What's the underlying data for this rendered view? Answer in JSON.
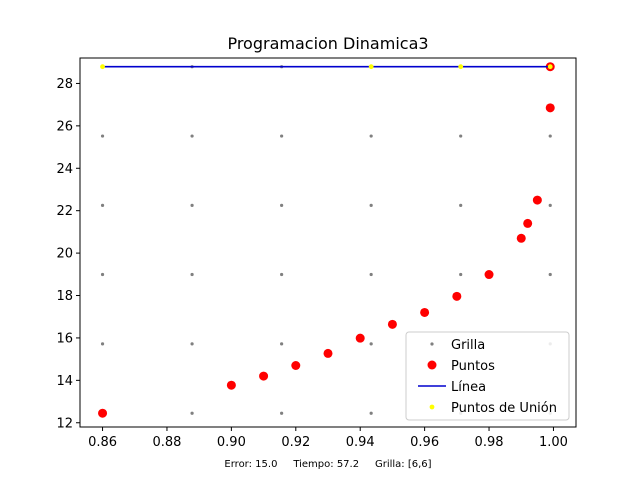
{
  "chart_data": {
    "type": "scatter",
    "title": "Programacion Dinamica3",
    "xlabel": "",
    "ylabel": "",
    "xlim": [
      0.853,
      1.007
    ],
    "ylim": [
      11.8,
      29.2
    ],
    "x_ticks": [
      0.86,
      0.88,
      0.9,
      0.92,
      0.94,
      0.96,
      0.98,
      1.0
    ],
    "x_tick_labels": [
      "0.86",
      "0.88",
      "0.90",
      "0.92",
      "0.94",
      "0.96",
      "0.98",
      "1.00"
    ],
    "y_ticks": [
      12,
      14,
      16,
      18,
      20,
      22,
      24,
      26,
      28
    ],
    "y_tick_labels": [
      "12",
      "14",
      "16",
      "18",
      "20",
      "22",
      "24",
      "26",
      "28"
    ],
    "grid": false,
    "legend_position": "lower-right",
    "series": [
      {
        "name": "Grilla",
        "kind": "scatter",
        "color": "#808080",
        "grid_x": [
          0.86,
          0.8878,
          0.9156,
          0.9434,
          0.9712,
          0.999
        ],
        "grid_y": [
          12.45,
          15.72,
          18.99,
          22.25,
          25.52,
          28.79
        ]
      },
      {
        "name": "Puntos",
        "kind": "scatter",
        "color": "#ff0000",
        "x": [
          0.86,
          0.9,
          0.91,
          0.92,
          0.93,
          0.94,
          0.95,
          0.96,
          0.97,
          0.98,
          0.99,
          0.992,
          0.995,
          0.999,
          0.999
        ],
        "y": [
          12.45,
          13.77,
          14.2,
          14.7,
          15.27,
          15.99,
          16.64,
          17.2,
          17.96,
          18.99,
          20.7,
          21.4,
          22.5,
          26.85,
          28.79
        ]
      },
      {
        "name": "Línea",
        "kind": "line",
        "color": "#0000cd",
        "x": [
          0.86,
          0.999
        ],
        "y": [
          28.79,
          28.79
        ]
      },
      {
        "name": "Puntos de Unión",
        "kind": "scatter",
        "color": "#ffff00",
        "x": [
          0.86,
          0.9434,
          0.9712,
          0.999
        ],
        "y": [
          28.79,
          28.79,
          28.79,
          28.79
        ]
      }
    ],
    "legend": [
      "Grilla",
      "Puntos",
      "Línea",
      "Puntos de Unión"
    ],
    "annotation": "Error: 15.0     Tiempo: 57.2     Grilla: [6,6]"
  }
}
